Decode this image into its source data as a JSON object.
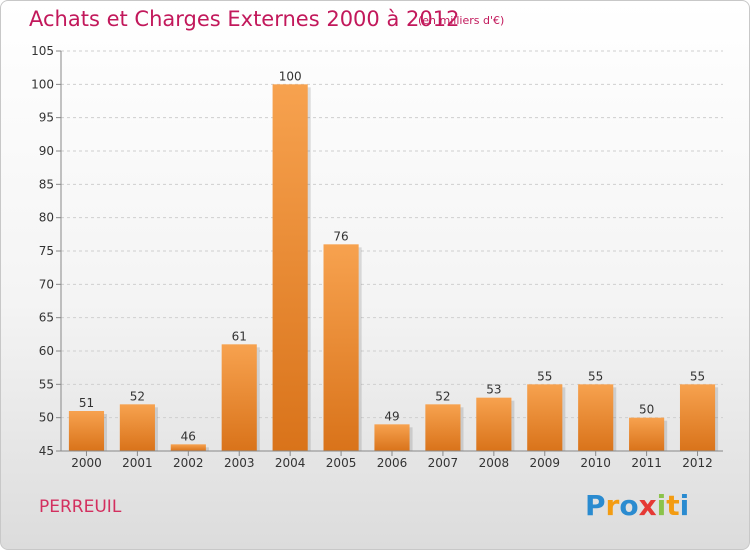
{
  "header": {
    "title": "Achats et Charges Externes 2000 à 2012",
    "subtitle": "(en milliers d'€)"
  },
  "footer": {
    "place": "PERREUIL",
    "brand_letters": [
      "P",
      "r",
      "o",
      "x",
      "i",
      "t",
      "i"
    ],
    "brand_colors": [
      "#2a8bd0",
      "#f39c12",
      "#2a8bd0",
      "#e53935",
      "#8bc34a",
      "#f39c12",
      "#2a8bd0"
    ]
  },
  "colors": {
    "bar_top": "#f7a24f",
    "bar_bottom": "#d9731a",
    "grid": "#cfcfcf",
    "axis": "#888888",
    "title": "#c2185b"
  },
  "chart_data": {
    "type": "bar",
    "title": "Achats et Charges Externes 2000 à 2012",
    "subtitle": "(en milliers d'€)",
    "categories": [
      "2000",
      "2001",
      "2002",
      "2003",
      "2004",
      "2005",
      "2006",
      "2007",
      "2008",
      "2009",
      "2010",
      "2011",
      "2012"
    ],
    "values": [
      51,
      52,
      46,
      61,
      100,
      76,
      49,
      52,
      53,
      55,
      55,
      50,
      55
    ],
    "ylim": [
      45,
      105
    ],
    "yticks": [
      45,
      50,
      55,
      60,
      65,
      70,
      75,
      80,
      85,
      90,
      95,
      100,
      105
    ],
    "grid": "horizontal dashed",
    "legend": "none"
  }
}
